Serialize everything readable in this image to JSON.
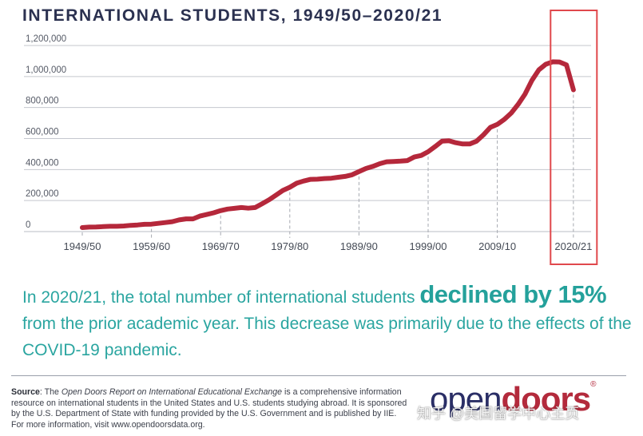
{
  "title": "INTERNATIONAL STUDENTS, 1949/50–2020/21",
  "chart_data": {
    "type": "line",
    "title": "INTERNATIONAL STUDENTS, 1949/50–2020/21",
    "xlabel": "",
    "ylabel": "",
    "ylim": [
      0,
      1200000
    ],
    "y_tick_labels": [
      "0",
      "200,000",
      "400,000",
      "600,000",
      "800,000",
      "1,000,000",
      "1,200,000"
    ],
    "x_tick_labels": [
      "1949/50",
      "1959/60",
      "1969/70",
      "1979/80",
      "1989/90",
      "1999/00",
      "2009/10",
      "2020/21"
    ],
    "grid": true,
    "line_color": "#b5283b",
    "highlight_box_color": "#e0484c",
    "series": [
      {
        "x": [
          1949,
          1950,
          1951,
          1952,
          1953,
          1954,
          1955,
          1956,
          1957,
          1958,
          1959,
          1960,
          1961,
          1962,
          1963,
          1964,
          1965,
          1966,
          1967,
          1968,
          1969,
          1970,
          1971,
          1972,
          1973,
          1974,
          1975,
          1976,
          1977,
          1978,
          1979,
          1980,
          1981,
          1982,
          1983,
          1984,
          1985,
          1986,
          1987,
          1988,
          1989,
          1990,
          1991,
          1992,
          1993,
          1994,
          1995,
          1996,
          1997,
          1998,
          1999,
          2000,
          2001,
          2002,
          2003,
          2004,
          2005,
          2006,
          2007,
          2008,
          2009,
          2010,
          2011,
          2012,
          2013,
          2014,
          2015,
          2016,
          2017,
          2018,
          2019,
          2020
        ],
        "values": [
          26000,
          29000,
          30000,
          32000,
          34000,
          34000,
          36000,
          40000,
          43000,
          47000,
          48000,
          53000,
          58000,
          64000,
          75000,
          82000,
          82000,
          100000,
          110000,
          121000,
          135000,
          145000,
          150000,
          155000,
          151000,
          155000,
          180000,
          205000,
          235000,
          265000,
          286000,
          312000,
          326000,
          337000,
          338000,
          342000,
          344000,
          350000,
          356000,
          366000,
          387000,
          407000,
          420000,
          438000,
          450000,
          452000,
          454000,
          458000,
          481000,
          491000,
          515000,
          548000,
          583000,
          586000,
          573000,
          565000,
          565000,
          583000,
          624000,
          672000,
          691000,
          723000,
          764000,
          820000,
          886000,
          975000,
          1043000,
          1079000,
          1095000,
          1094000,
          1075000,
          914000
        ]
      }
    ]
  },
  "headline": {
    "lead": "In 2020/21, the total number of international students ",
    "emphasis": "declined by 15%",
    "rest": " from the prior academic year. This decrease was primarily due to the effects of the COVID-19 pandemic."
  },
  "source": {
    "label": "Source",
    "colon": ": The ",
    "report": "Open Doors Report on International Educational Exchange",
    "text": " is a comprehensive information resource on international students in the United States and U.S. students studying abroad. It is sponsored by the U.S. Department of State with funding provided by the U.S. Government and is published by IIE. For more information, visit www.opendoorsdata.org."
  },
  "logo": {
    "open": "open",
    "doors": "doors",
    "reg": "®"
  },
  "watermark": "知乎 @美国留学中心主页"
}
